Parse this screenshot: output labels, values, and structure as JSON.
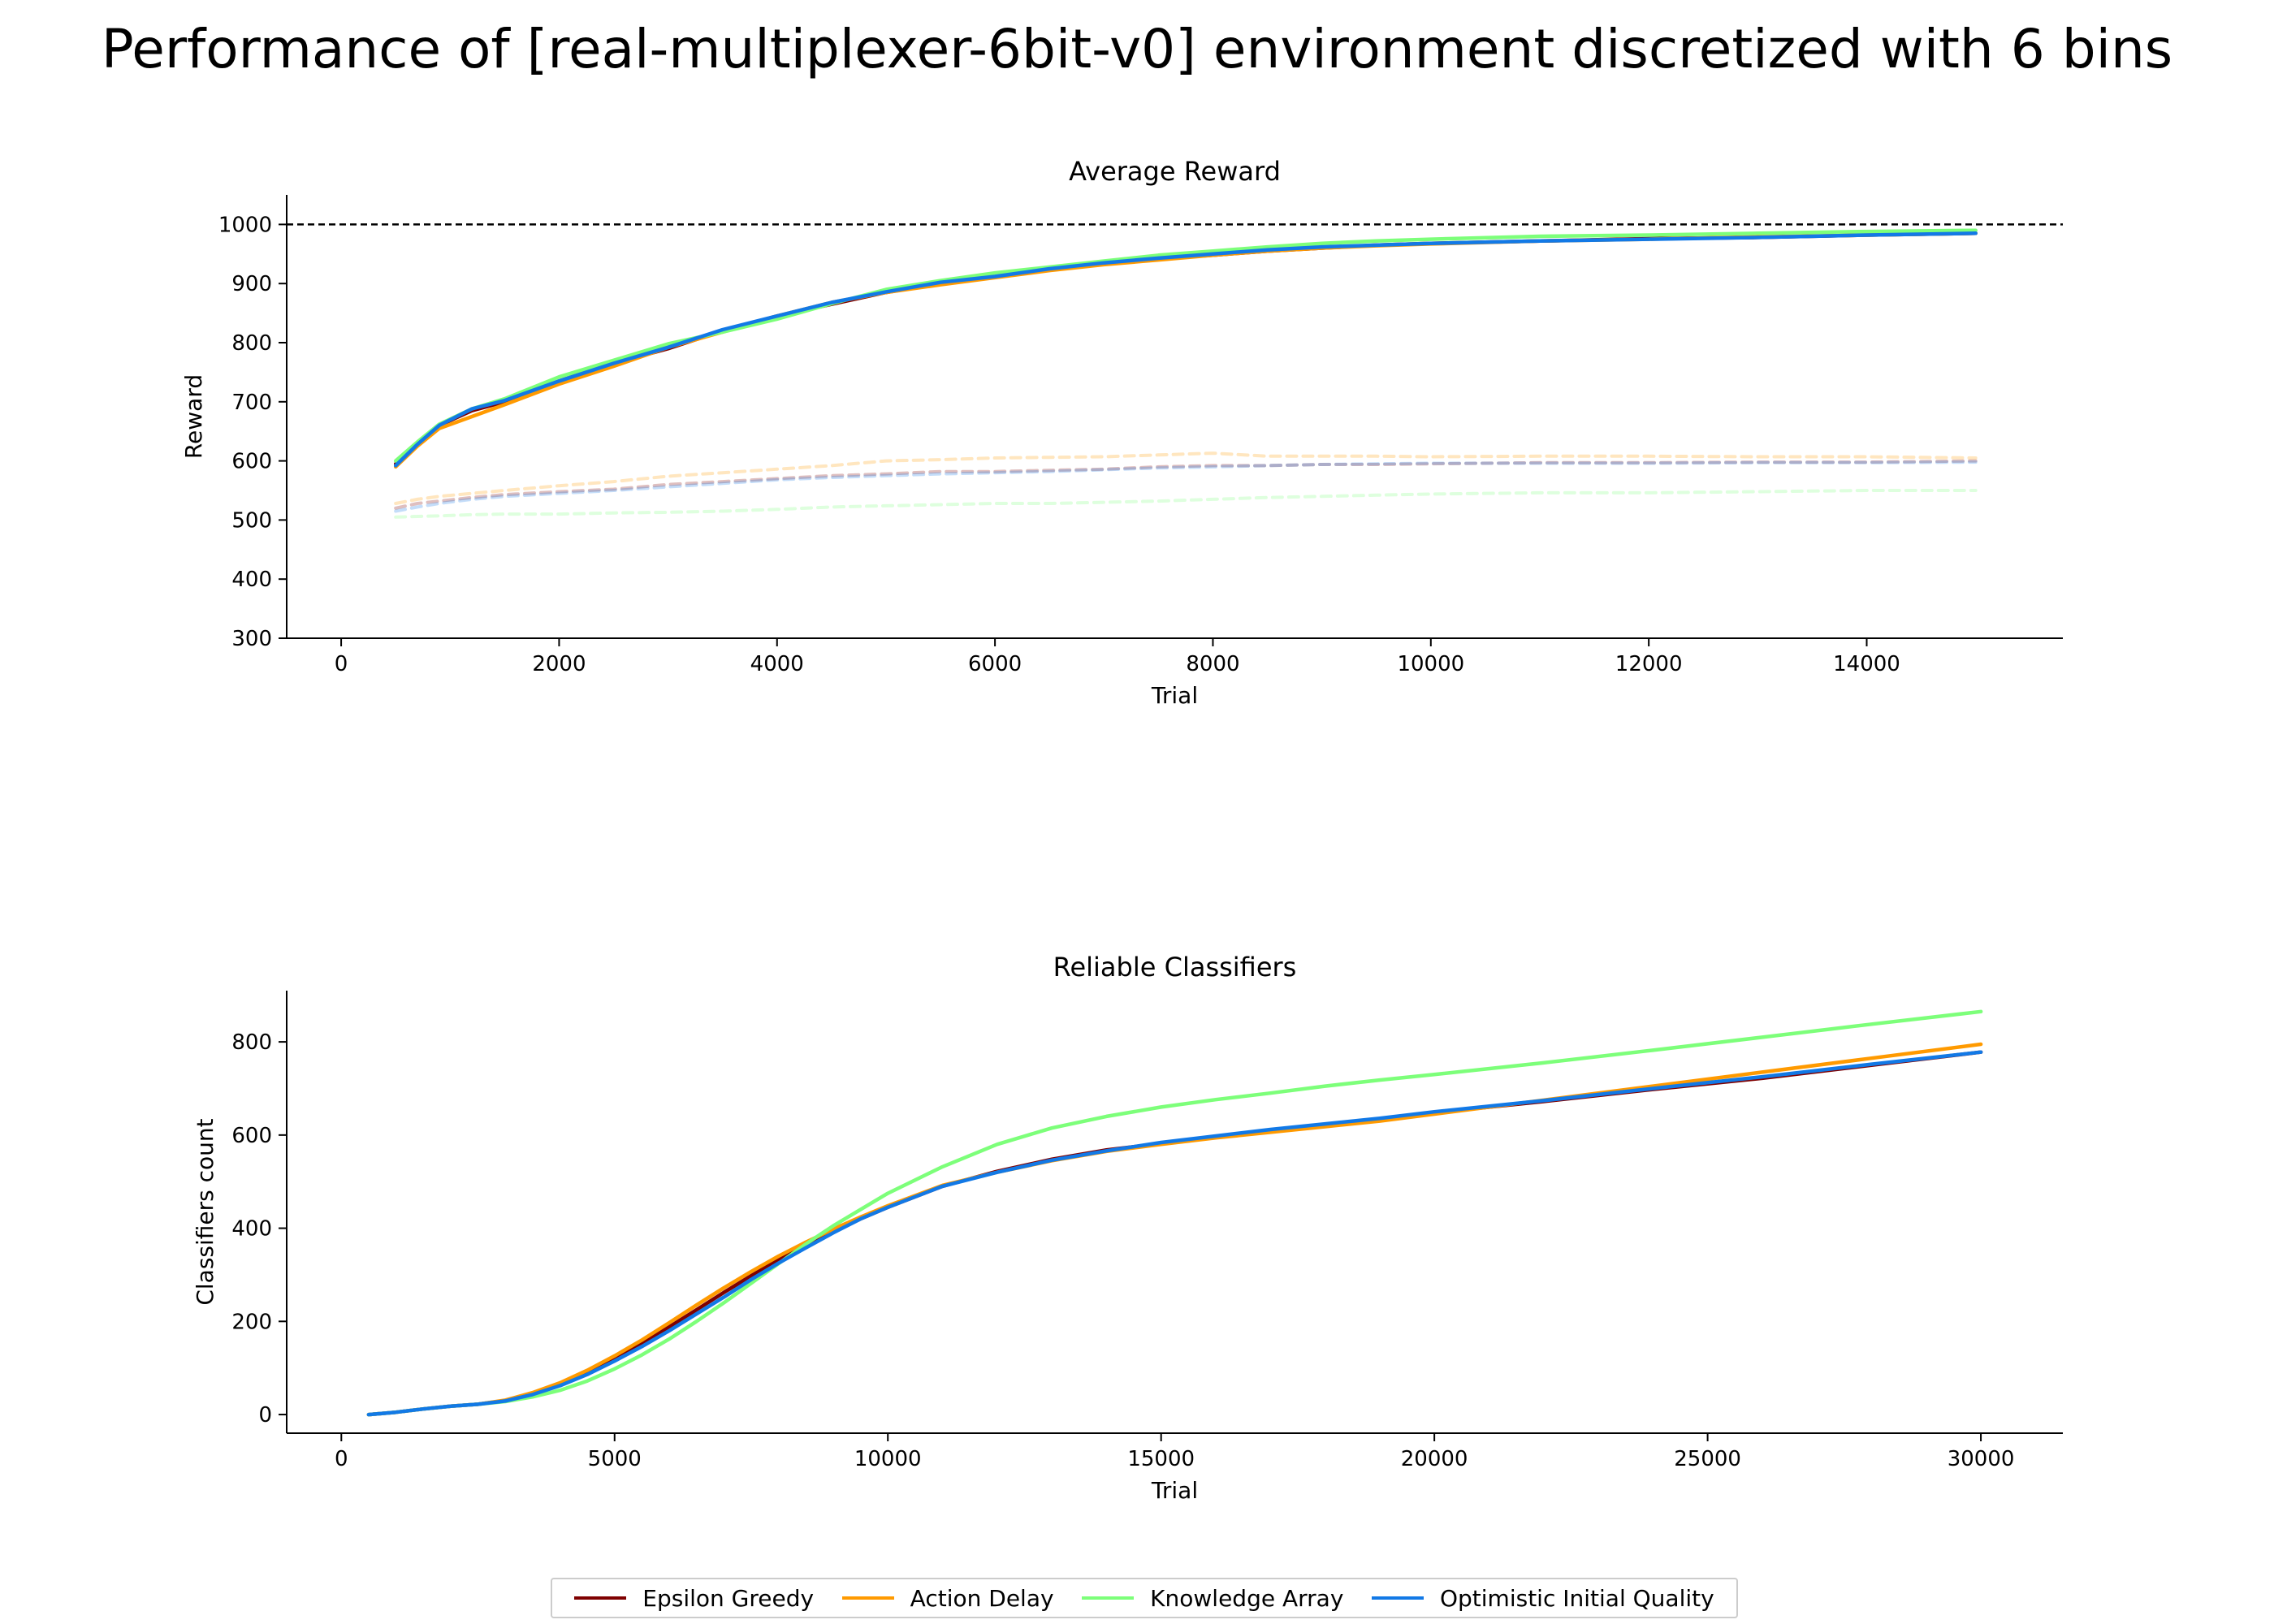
{
  "suptitle": "Performance of [real-multiplexer-6bit-v0] environment discretized with 6 bins",
  "colors": {
    "epsilon_greedy": "#7f0000",
    "action_delay": "#ff9a00",
    "knowledge_array": "#7dff7a",
    "optimistic_initial_quality": "#1279e6"
  },
  "legend": [
    {
      "label": "Epsilon Greedy",
      "color": "#7f0000"
    },
    {
      "label": "Action Delay",
      "color": "#ff9a00"
    },
    {
      "label": "Knowledge Array",
      "color": "#7dff7a"
    },
    {
      "label": "Optimistic Initial Quality",
      "color": "#1279e6"
    }
  ],
  "chart_data": [
    {
      "type": "line",
      "title": "Average Reward",
      "xlabel": "Trial",
      "ylabel": "Reward",
      "xlim": [
        -500,
        15800
      ],
      "ylim": [
        300,
        1050
      ],
      "xticks": [
        0,
        2000,
        4000,
        6000,
        8000,
        10000,
        12000,
        14000
      ],
      "yticks": [
        300,
        400,
        500,
        600,
        700,
        800,
        900,
        1000
      ],
      "reference_line": {
        "y": 1000,
        "style": "dashed",
        "color": "#000000"
      },
      "x": [
        500,
        700,
        900,
        1200,
        1500,
        2000,
        2500,
        3000,
        3500,
        4000,
        4500,
        5000,
        5500,
        6000,
        6500,
        7000,
        7500,
        8000,
        8500,
        9000,
        9500,
        10000,
        11000,
        12000,
        13000,
        14000,
        15000
      ],
      "series": [
        {
          "name": "Epsilon Greedy",
          "style": "solid",
          "values": [
            595,
            630,
            660,
            685,
            700,
            735,
            765,
            790,
            820,
            845,
            865,
            885,
            900,
            912,
            925,
            935,
            942,
            948,
            955,
            960,
            965,
            968,
            972,
            976,
            978,
            982,
            985
          ]
        },
        {
          "name": "Action Delay",
          "style": "solid",
          "values": [
            590,
            625,
            655,
            675,
            695,
            730,
            760,
            792,
            818,
            845,
            868,
            885,
            898,
            910,
            922,
            932,
            940,
            948,
            955,
            960,
            964,
            967,
            972,
            975,
            979,
            982,
            985
          ]
        },
        {
          "name": "Knowledge Array",
          "style": "solid",
          "values": [
            600,
            632,
            662,
            688,
            705,
            742,
            770,
            798,
            818,
            840,
            866,
            890,
            905,
            918,
            928,
            938,
            948,
            955,
            962,
            968,
            972,
            975,
            980,
            982,
            985,
            988,
            990
          ]
        },
        {
          "name": "Optimistic Initial Quality",
          "style": "solid",
          "values": [
            592,
            628,
            660,
            688,
            702,
            735,
            765,
            792,
            822,
            845,
            868,
            886,
            902,
            912,
            925,
            935,
            943,
            950,
            957,
            962,
            965,
            968,
            972,
            975,
            978,
            982,
            985
          ]
        },
        {
          "name": "Epsilon Greedy",
          "style": "dashed",
          "values": [
            520,
            528,
            532,
            538,
            543,
            548,
            552,
            560,
            565,
            570,
            575,
            578,
            582,
            582,
            584,
            586,
            590,
            592,
            592,
            594,
            594,
            595,
            597,
            597,
            598,
            598,
            600
          ]
        },
        {
          "name": "Action Delay",
          "style": "dashed",
          "values": [
            528,
            535,
            540,
            545,
            550,
            558,
            565,
            574,
            580,
            586,
            592,
            600,
            602,
            605,
            606,
            607,
            610,
            613,
            608,
            608,
            608,
            607,
            608,
            608,
            607,
            607,
            605
          ]
        },
        {
          "name": "Knowledge Array",
          "style": "dashed",
          "values": [
            505,
            506,
            507,
            509,
            510,
            510,
            512,
            513,
            515,
            518,
            522,
            524,
            526,
            528,
            528,
            530,
            532,
            535,
            538,
            540,
            542,
            544,
            546,
            546,
            548,
            550,
            550
          ]
        },
        {
          "name": "Optimistic Initial Quality",
          "style": "dashed",
          "values": [
            515,
            522,
            528,
            535,
            540,
            545,
            550,
            556,
            562,
            568,
            572,
            575,
            578,
            580,
            582,
            585,
            588,
            590,
            592,
            594,
            595,
            596,
            596,
            596,
            597,
            597,
            598
          ]
        }
      ]
    },
    {
      "type": "line",
      "title": "Reliable Classifiers",
      "xlabel": "Trial",
      "ylabel": "Classifiers count",
      "xlim": [
        -1000,
        31500
      ],
      "ylim": [
        -40,
        910
      ],
      "xticks": [
        0,
        5000,
        10000,
        15000,
        20000,
        25000,
        30000
      ],
      "yticks": [
        0,
        200,
        400,
        600,
        800
      ],
      "x": [
        500,
        1000,
        1500,
        2000,
        2500,
        3000,
        3500,
        4000,
        4500,
        5000,
        5500,
        6000,
        6500,
        7000,
        7500,
        8000,
        8500,
        9000,
        9500,
        10000,
        11000,
        12000,
        13000,
        14000,
        15000,
        16000,
        17000,
        18000,
        19000,
        20000,
        22000,
        24000,
        26000,
        28000,
        30000
      ],
      "series": [
        {
          "name": "Epsilon Greedy",
          "values": [
            0,
            5,
            12,
            18,
            22,
            30,
            45,
            65,
            90,
            120,
            152,
            188,
            225,
            262,
            298,
            332,
            362,
            392,
            420,
            445,
            490,
            522,
            548,
            568,
            582,
            596,
            610,
            622,
            635,
            648,
            672,
            698,
            722,
            750,
            778
          ]
        },
        {
          "name": "Action Delay",
          "values": [
            0,
            5,
            12,
            18,
            22,
            31,
            47,
            68,
            95,
            126,
            160,
            197,
            235,
            272,
            307,
            340,
            370,
            398,
            424,
            448,
            492,
            520,
            545,
            565,
            580,
            594,
            606,
            618,
            630,
            645,
            675,
            705,
            735,
            765,
            795
          ]
        },
        {
          "name": "Knowledge Array",
          "values": [
            0,
            5,
            12,
            18,
            22,
            28,
            38,
            52,
            72,
            98,
            128,
            162,
            200,
            240,
            282,
            324,
            366,
            405,
            440,
            475,
            532,
            580,
            615,
            640,
            660,
            676,
            690,
            705,
            718,
            730,
            755,
            782,
            810,
            838,
            865
          ]
        },
        {
          "name": "Optimistic Initial Quality",
          "values": [
            0,
            5,
            12,
            18,
            22,
            29,
            43,
            62,
            86,
            115,
            146,
            180,
            216,
            252,
            290,
            325,
            358,
            390,
            420,
            445,
            490,
            520,
            546,
            566,
            584,
            598,
            612,
            624,
            636,
            650,
            674,
            700,
            725,
            752,
            778
          ]
        }
      ]
    }
  ]
}
